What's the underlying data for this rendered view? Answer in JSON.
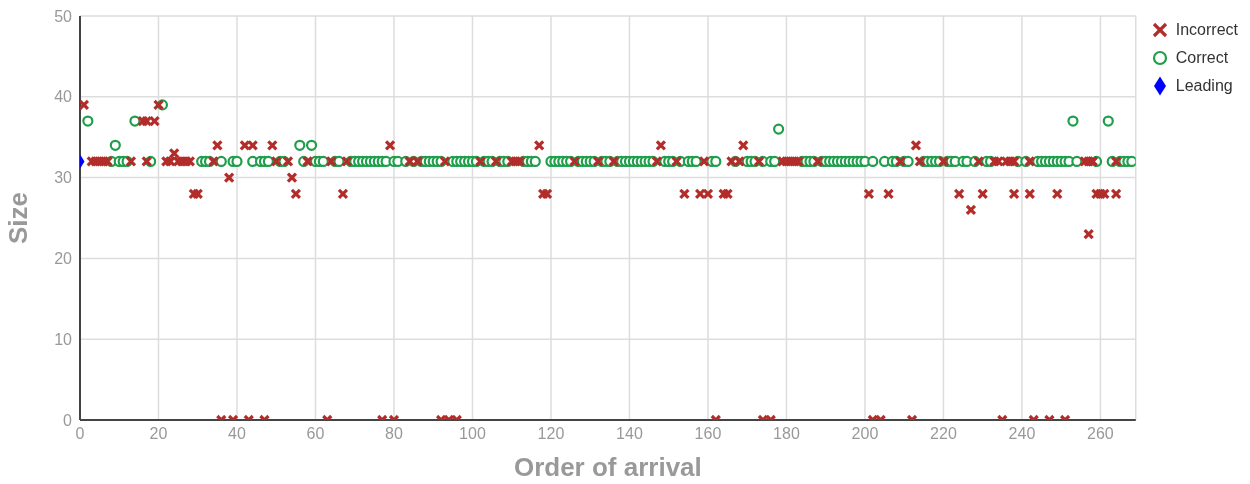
{
  "chart_data": {
    "type": "scatter",
    "xlabel": "Order of arrival",
    "ylabel": "Size",
    "xlim": [
      0,
      269
    ],
    "ylim": [
      0,
      50
    ],
    "xticks": [
      0,
      20,
      40,
      60,
      80,
      100,
      120,
      140,
      160,
      180,
      200,
      220,
      240,
      260
    ],
    "yticks": [
      0,
      10,
      20,
      30,
      40,
      50
    ],
    "grid": true,
    "legend": "top right",
    "series": [
      {
        "name": "Incorrect",
        "color": "#b22d2a",
        "marker": "cross",
        "x": [
          1,
          16,
          17,
          19,
          20,
          24,
          29,
          30,
          35,
          38,
          42,
          44,
          49,
          54,
          55,
          67,
          79,
          117,
          118,
          119,
          148,
          154,
          158,
          160,
          164,
          165,
          169,
          201,
          206,
          213,
          224,
          227,
          230,
          238,
          242,
          249,
          257,
          258,
          259,
          260,
          261,
          264,
          36,
          39,
          43,
          47,
          63,
          77,
          80,
          92,
          94,
          96,
          162,
          174,
          176,
          202,
          204,
          212,
          235,
          243,
          247,
          251,
          3,
          4,
          5,
          6,
          7,
          13,
          17,
          22,
          23,
          25,
          26,
          27,
          28,
          34,
          50,
          53,
          58,
          64,
          68,
          84,
          86,
          93,
          102,
          106,
          110,
          111,
          112,
          126,
          132,
          136,
          147,
          152,
          159,
          166,
          168,
          173,
          179,
          180,
          181,
          182,
          183,
          188,
          209,
          214,
          220,
          229,
          233,
          234,
          236,
          237,
          238,
          242,
          256,
          257,
          258,
          264
        ],
        "values": [
          39,
          37,
          37,
          37,
          39,
          33,
          28,
          28,
          34,
          30,
          34,
          34,
          34,
          30,
          28,
          28,
          34,
          34,
          28,
          28,
          34,
          28,
          28,
          28,
          28,
          28,
          34,
          28,
          28,
          34,
          28,
          26,
          28,
          28,
          28,
          28,
          23,
          32,
          28,
          28,
          28,
          28,
          0,
          0,
          0,
          0,
          0,
          0,
          0,
          0,
          0,
          0,
          0,
          0,
          0,
          0,
          0,
          0,
          0,
          0,
          0,
          0,
          32,
          32,
          32,
          32,
          32,
          32,
          32,
          32,
          32,
          32,
          32,
          32,
          32,
          32,
          32,
          32,
          32,
          32,
          32,
          32,
          32,
          32,
          32,
          32,
          32,
          32,
          32,
          32,
          32,
          32,
          32,
          32,
          32,
          32,
          32,
          32,
          32,
          32,
          32,
          32,
          32,
          32,
          32,
          32,
          32,
          32,
          32,
          32,
          32,
          32,
          32,
          32,
          32,
          32,
          32,
          32
        ]
      },
      {
        "name": "Correct",
        "color": "#1f9e4b",
        "marker": "circle",
        "x": [
          2,
          9,
          14,
          21,
          56,
          59,
          178,
          253,
          262,
          8,
          10,
          11,
          12,
          18,
          31,
          32,
          33,
          36,
          39,
          40,
          44,
          46,
          47,
          48,
          51,
          52,
          57,
          60,
          61,
          62,
          65,
          66,
          69,
          70,
          71,
          72,
          73,
          74,
          75,
          76,
          77,
          78,
          80,
          81,
          83,
          85,
          87,
          88,
          89,
          90,
          91,
          92,
          95,
          96,
          97,
          98,
          99,
          100,
          101,
          103,
          104,
          105,
          107,
          108,
          109,
          113,
          114,
          115,
          116,
          120,
          121,
          122,
          123,
          124,
          125,
          127,
          128,
          129,
          130,
          131,
          133,
          134,
          135,
          137,
          138,
          139,
          140,
          141,
          142,
          143,
          144,
          145,
          146,
          149,
          150,
          151,
          153,
          155,
          156,
          157,
          161,
          162,
          167,
          170,
          171,
          172,
          174,
          176,
          177,
          184,
          185,
          186,
          187,
          189,
          190,
          191,
          192,
          193,
          194,
          195,
          196,
          197,
          198,
          199,
          200,
          202,
          205,
          207,
          208,
          210,
          211,
          215,
          216,
          217,
          218,
          219,
          221,
          222,
          223,
          225,
          226,
          228,
          231,
          232,
          239,
          241,
          244,
          245,
          246,
          247,
          248,
          249,
          250,
          251,
          252,
          254,
          259,
          263,
          265,
          266,
          267,
          268
        ],
        "values": [
          37,
          34,
          37,
          39,
          34,
          34,
          36,
          37,
          37,
          32,
          32,
          32,
          32,
          32,
          32,
          32,
          32,
          32,
          32,
          32,
          32,
          32,
          32,
          32,
          32,
          32,
          32,
          32,
          32,
          32,
          32,
          32,
          32,
          32,
          32,
          32,
          32,
          32,
          32,
          32,
          32,
          32,
          32,
          32,
          32,
          32,
          32,
          32,
          32,
          32,
          32,
          32,
          32,
          32,
          32,
          32,
          32,
          32,
          32,
          32,
          32,
          32,
          32,
          32,
          32,
          32,
          32,
          32,
          32,
          32,
          32,
          32,
          32,
          32,
          32,
          32,
          32,
          32,
          32,
          32,
          32,
          32,
          32,
          32,
          32,
          32,
          32,
          32,
          32,
          32,
          32,
          32,
          32,
          32,
          32,
          32,
          32,
          32,
          32,
          32,
          32,
          32,
          32,
          32,
          32,
          32,
          32,
          32,
          32,
          32,
          32,
          32,
          32,
          32,
          32,
          32,
          32,
          32,
          32,
          32,
          32,
          32,
          32,
          32,
          32,
          32,
          32,
          32,
          32,
          32,
          32,
          32,
          32,
          32,
          32,
          32,
          32,
          32,
          32,
          32,
          32,
          32,
          32,
          32,
          32,
          32,
          32,
          32,
          32,
          32,
          32,
          32,
          32,
          32,
          32,
          32,
          32,
          32,
          32,
          32,
          32,
          32
        ]
      },
      {
        "name": "Leading",
        "color": "#0000ff",
        "marker": "diamond",
        "x": [
          0
        ],
        "values": [
          32
        ]
      }
    ]
  }
}
